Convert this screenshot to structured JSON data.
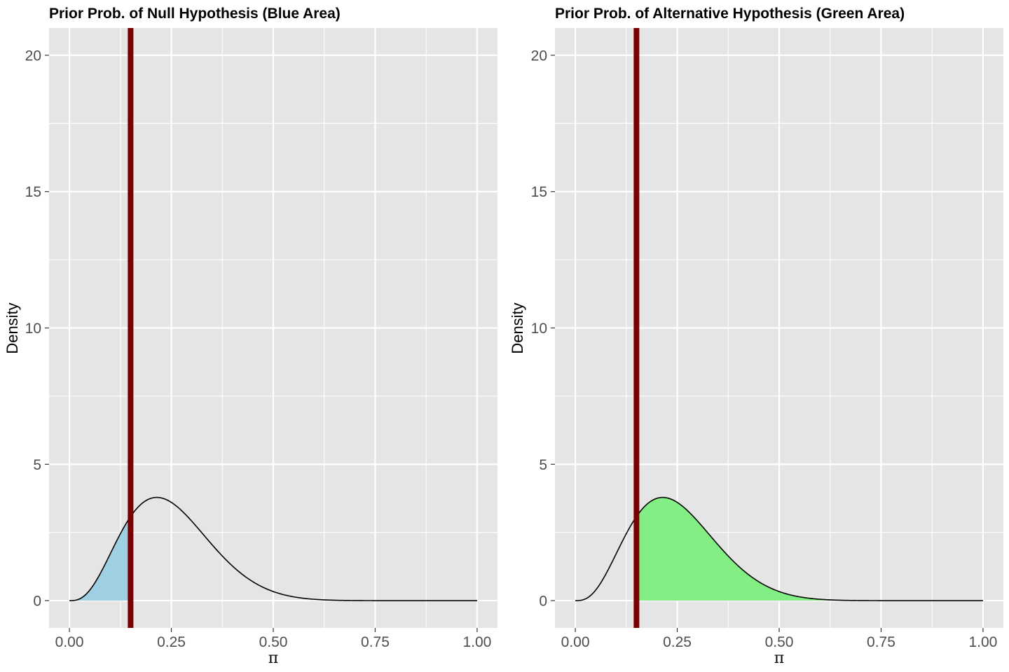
{
  "chart_data": [
    {
      "type": "area",
      "title": "Prior Prob. of Null Hypothesis (Blue Area)",
      "xlabel": "π",
      "ylabel": "Density",
      "xlim": [
        -0.05,
        1.05
      ],
      "ylim": [
        -1.0,
        21.0
      ],
      "x_ticks": [
        0.0,
        0.25,
        0.5,
        0.75,
        1.0
      ],
      "x_tick_labels": [
        "0.00",
        "0.25",
        "0.50",
        "0.75",
        "1.00"
      ],
      "y_ticks": [
        0,
        5,
        10,
        15,
        20
      ],
      "y_tick_labels": [
        "0",
        "5",
        "10",
        "15",
        "20"
      ],
      "grid": true,
      "density_curve": {
        "distribution": "beta",
        "alpha": 4,
        "beta": 12,
        "x_range": [
          0.0,
          1.0
        ],
        "peak": {
          "x": 0.214,
          "y": 3.78
        }
      },
      "shaded_region": {
        "from": 0.0,
        "to": 0.15,
        "color": "#9ecfe2"
      },
      "reference_line": {
        "x": 0.15,
        "color": "#7a0000"
      }
    },
    {
      "type": "area",
      "title": "Prior Prob. of Alternative Hypothesis (Green Area)",
      "xlabel": "π",
      "ylabel": "Density",
      "xlim": [
        -0.05,
        1.05
      ],
      "ylim": [
        -1.0,
        21.0
      ],
      "x_ticks": [
        0.0,
        0.25,
        0.5,
        0.75,
        1.0
      ],
      "x_tick_labels": [
        "0.00",
        "0.25",
        "0.50",
        "0.75",
        "1.00"
      ],
      "y_ticks": [
        0,
        5,
        10,
        15,
        20
      ],
      "y_tick_labels": [
        "0",
        "5",
        "10",
        "15",
        "20"
      ],
      "grid": true,
      "density_curve": {
        "distribution": "beta",
        "alpha": 4,
        "beta": 12,
        "x_range": [
          0.0,
          1.0
        ],
        "peak": {
          "x": 0.214,
          "y": 3.78
        }
      },
      "shaded_region": {
        "from": 0.15,
        "to": 1.0,
        "color": "#83ee83"
      },
      "reference_line": {
        "x": 0.15,
        "color": "#7a0000"
      }
    }
  ],
  "colors": {
    "panel_background": "#e5e5e5",
    "grid": "#ffffff",
    "curve": "#000000"
  }
}
